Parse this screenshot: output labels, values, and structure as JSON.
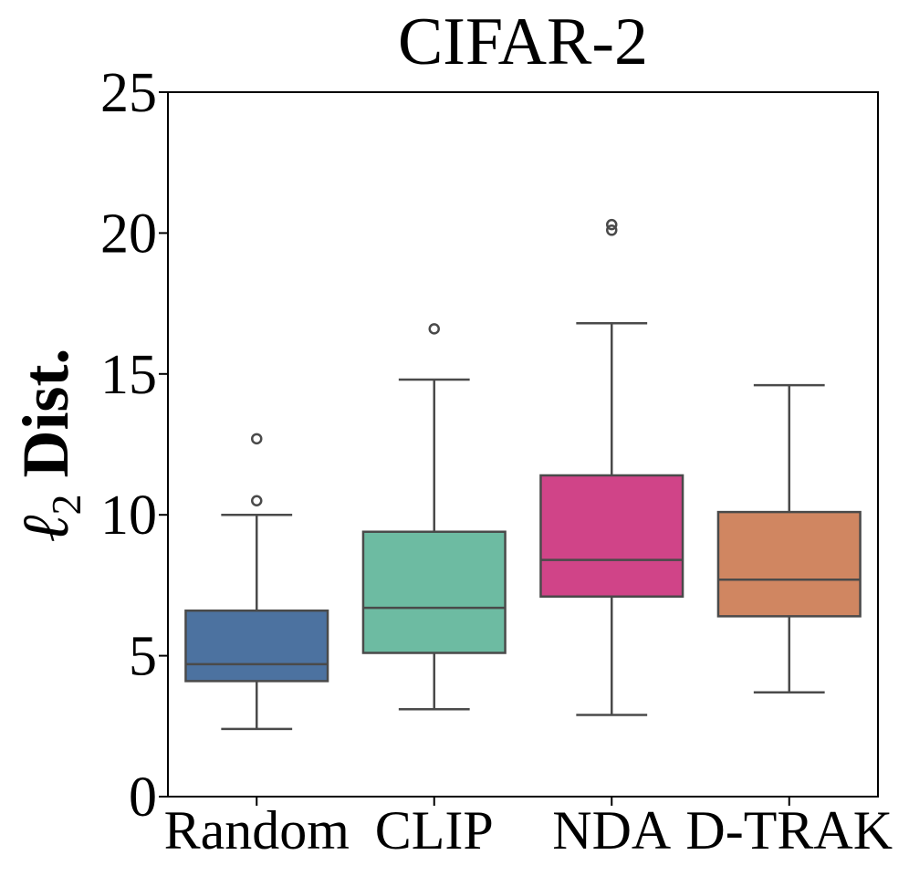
{
  "chart_data": {
    "type": "box",
    "title": "CIFAR-2",
    "xlabel": "",
    "ylabel": "Dist.",
    "ylabel_symbol": "ℓ",
    "ylabel_subscript": "2",
    "ylim": [
      0,
      25
    ],
    "yticks": [
      0,
      5,
      10,
      15,
      20,
      25
    ],
    "grid": false,
    "categories": [
      "Random",
      "CLIP",
      "NDA",
      "D-TRAK"
    ],
    "series": [
      {
        "name": "Random",
        "color": "#4c72a0",
        "whisker_low": 2.4,
        "q1": 4.1,
        "median": 4.7,
        "q3": 6.6,
        "whisker_high": 10.0,
        "outliers": [
          10.5,
          12.7
        ]
      },
      {
        "name": "CLIP",
        "color": "#6dbba2",
        "whisker_low": 3.1,
        "q1": 5.1,
        "median": 6.7,
        "q3": 9.4,
        "whisker_high": 14.8,
        "outliers": [
          16.6
        ]
      },
      {
        "name": "NDA",
        "color": "#d04488",
        "whisker_low": 2.9,
        "q1": 7.1,
        "median": 8.4,
        "q3": 11.4,
        "whisker_high": 16.8,
        "outliers": [
          20.1,
          20.3
        ]
      },
      {
        "name": "D-TRAK",
        "color": "#d08661",
        "whisker_low": 3.7,
        "q1": 6.4,
        "median": 7.7,
        "q3": 10.1,
        "whisker_high": 14.6,
        "outliers": []
      }
    ]
  }
}
